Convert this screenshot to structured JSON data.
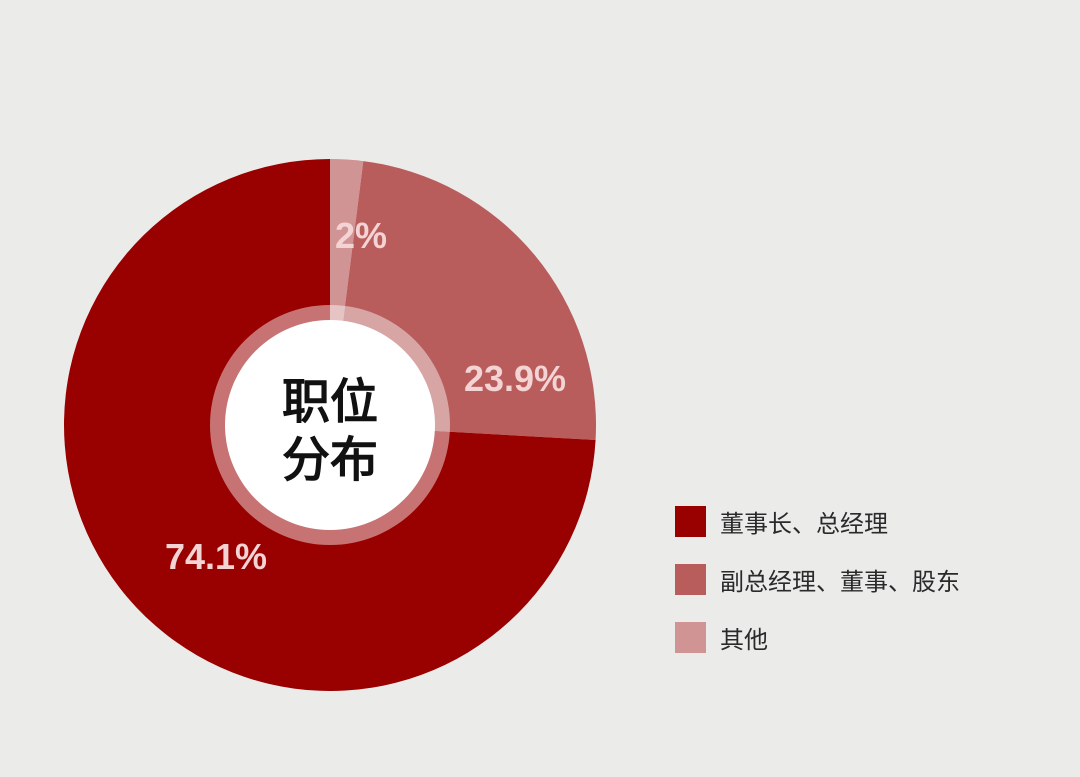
{
  "chart_data": {
    "type": "pie",
    "title": "职位分布",
    "donut": true,
    "categories": [
      "其他",
      "副总经理、董事、股东",
      "董事长、总经理"
    ],
    "values": [
      2,
      23.9,
      74.1
    ],
    "labels": [
      "2%",
      "23.9%",
      "74.1%"
    ],
    "colors": [
      "#d19494",
      "#b95c5c",
      "#990000"
    ],
    "legend_position": "right",
    "legend": [
      "董事长、总经理",
      "副总经理、董事、股东",
      "其他"
    ],
    "legend_colors": [
      "#990000",
      "#b95c5c",
      "#d19494"
    ]
  },
  "center_title": {
    "line1": "职位",
    "line2": "分布"
  }
}
